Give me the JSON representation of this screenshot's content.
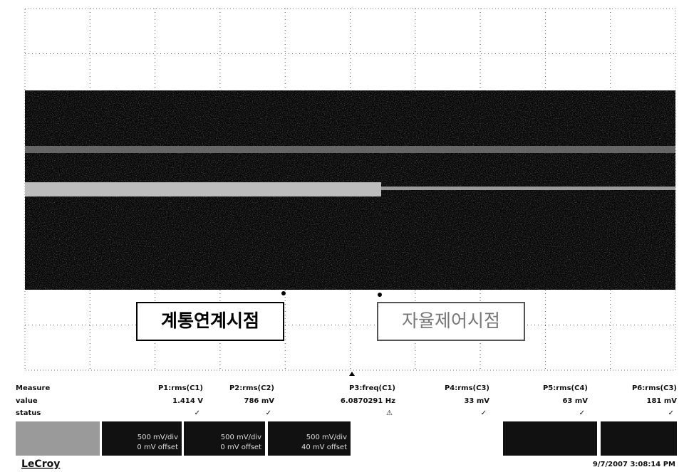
{
  "annotations": [
    "계통연계시점",
    "자율제어시점"
  ],
  "measure": {
    "header": [
      "Measure",
      "value",
      "status"
    ],
    "params": [
      {
        "name": "P1:rms(C1)",
        "value": "1.414 V",
        "status": "✓"
      },
      {
        "name": "P2:rms(C2)",
        "value": "786 mV",
        "status": "✓"
      },
      {
        "name": "P3:freq(C1)",
        "value": "6.0870291 Hz",
        "status": "⚠"
      },
      {
        "name": "P4:rms(C3)",
        "value": "33 mV",
        "status": "✓"
      },
      {
        "name": "P5:rms(C4)",
        "value": "63 mV",
        "status": "✓"
      },
      {
        "name": "P6:rms(C3)",
        "value": "181 mV",
        "status": "✓"
      }
    ]
  },
  "channels": [
    {
      "scale": "500 mV/div",
      "offset": "0 mV offset"
    },
    {
      "scale": "500 mV/div",
      "offset": "0 mV offset"
    },
    {
      "scale": "500 mV/div",
      "offset": "40 mV offset"
    }
  ],
  "footer": {
    "brand": "LeCroy",
    "timestamp": "9/7/2007 3:08:14 PM"
  }
}
